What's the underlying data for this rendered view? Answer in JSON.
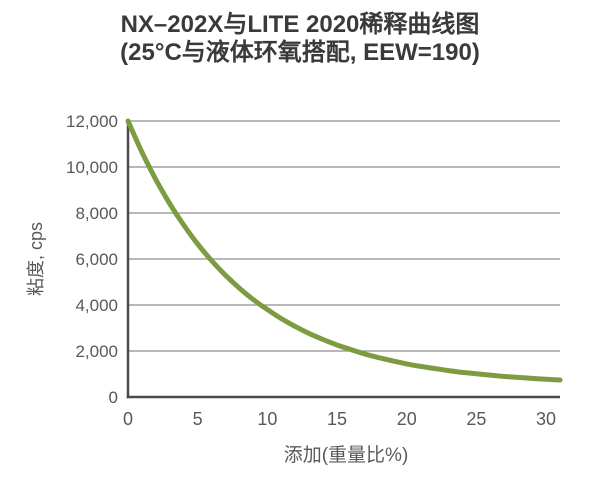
{
  "page": {
    "background_color": "#ffffff"
  },
  "chart_data": {
    "type": "line",
    "title": "NX–202X与LITE 2020稀释曲线图",
    "subtitle": "(25°C与液体环氧搭配, EEW=190)",
    "xlabel": "添加(重量比%)",
    "ylabel": "粘度, cps",
    "xlim": [
      0,
      31
    ],
    "ylim": [
      0,
      12000
    ],
    "x_ticks": [
      0,
      5,
      10,
      15,
      20,
      25,
      30
    ],
    "x_tick_labels": [
      "0",
      "5",
      "10",
      "15",
      "20",
      "25",
      "30"
    ],
    "y_ticks": [
      0,
      2000,
      4000,
      6000,
      8000,
      10000,
      12000
    ],
    "y_tick_labels": [
      "0",
      "2,000",
      "4,000",
      "6,000",
      "8,000",
      "10,000",
      "12,000"
    ],
    "grid": "horizontal-only",
    "legend_position": "none",
    "series": [
      {
        "color": "#7d9c42",
        "x": [
          0,
          1,
          2,
          3,
          4,
          5,
          6,
          7,
          8,
          9,
          10,
          11,
          12,
          13,
          14,
          15,
          16,
          17,
          18,
          19,
          20,
          21,
          22,
          23,
          24,
          25,
          26,
          27,
          28,
          29,
          30,
          31
        ],
        "y": [
          12000,
          10650,
          9450,
          8400,
          7480,
          6650,
          5930,
          5290,
          4730,
          4230,
          3800,
          3410,
          3070,
          2760,
          2500,
          2260,
          2060,
          1870,
          1710,
          1570,
          1440,
          1330,
          1240,
          1150,
          1070,
          1010,
          950,
          890,
          850,
          810,
          770,
          740
        ]
      }
    ]
  },
  "style": {
    "title_color": "#3a3a3a",
    "axis_color": "#4a4a4a",
    "grid_color": "#8e8e8e",
    "tick_label_color": "#595959",
    "axis_title_color": "#595959",
    "curve_width": 5
  }
}
